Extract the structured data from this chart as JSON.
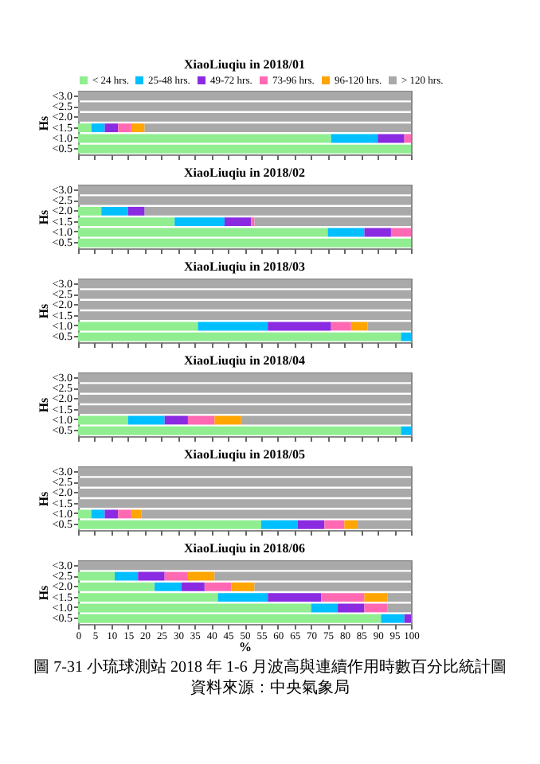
{
  "chart_data": [
    {
      "type": "bar",
      "orientation": "horizontal",
      "stacked": true,
      "title": "XiaoLiuqiu in 2018/01",
      "ylabel": "Hs",
      "categories": [
        "<3.0",
        "<2.5",
        "<2.0",
        "<1.5",
        "<1.0",
        "<0.5"
      ],
      "xlim": [
        0,
        100
      ],
      "xticks": [
        0,
        5,
        10,
        15,
        20,
        25,
        30,
        35,
        40,
        45,
        50,
        55,
        60,
        65,
        70,
        75,
        80,
        85,
        90,
        95,
        100
      ],
      "tick_labels": "y",
      "legend": "top",
      "series": [
        {
          "name": "< 24 hrs.",
          "color": "#90ee90",
          "values": [
            0,
            0,
            0,
            4,
            76,
            100
          ]
        },
        {
          "name": "25-48 hrs.",
          "color": "#00bfff",
          "values": [
            0,
            0,
            0,
            4,
            14,
            0
          ]
        },
        {
          "name": "49-72 hrs.",
          "color": "#8a2be2",
          "values": [
            0,
            0,
            0,
            4,
            8,
            0
          ]
        },
        {
          "name": "73-96 hrs.",
          "color": "#ff69b4",
          "values": [
            0,
            0,
            0,
            4,
            2,
            0
          ]
        },
        {
          "name": "96-120 hrs.",
          "color": "#ffa500",
          "values": [
            0,
            0,
            0,
            4,
            0,
            0
          ]
        },
        {
          "name": "> 120 hrs.",
          "color": "#a9a9a9",
          "values": [
            100,
            100,
            100,
            80,
            0,
            0
          ]
        }
      ]
    },
    {
      "type": "bar",
      "orientation": "horizontal",
      "stacked": true,
      "title": "XiaoLiuqiu in 2018/02",
      "ylabel": "Hs",
      "categories": [
        "<3.0",
        "<2.5",
        "<2.0",
        "<1.5",
        "<1.0",
        "<0.5"
      ],
      "xlim": [
        0,
        100
      ],
      "xticks": [
        0,
        5,
        10,
        15,
        20,
        25,
        30,
        35,
        40,
        45,
        50,
        55,
        60,
        65,
        70,
        75,
        80,
        85,
        90,
        95,
        100
      ],
      "tick_labels": "y",
      "series": [
        {
          "color": "#90ee90",
          "values": [
            0,
            0,
            7,
            29,
            75,
            100
          ]
        },
        {
          "color": "#00bfff",
          "values": [
            0,
            0,
            8,
            15,
            11,
            0
          ]
        },
        {
          "color": "#8a2be2",
          "values": [
            0,
            0,
            5,
            8,
            8,
            0
          ]
        },
        {
          "color": "#ff69b4",
          "values": [
            0,
            0,
            0,
            1,
            6,
            0
          ]
        },
        {
          "color": "#ffa500",
          "values": [
            0,
            0,
            0,
            0,
            0,
            0
          ]
        },
        {
          "color": "#a9a9a9",
          "values": [
            100,
            100,
            80,
            47,
            0,
            0
          ]
        }
      ]
    },
    {
      "type": "bar",
      "orientation": "horizontal",
      "stacked": true,
      "title": "XiaoLiuqiu in 2018/03",
      "ylabel": "Hs",
      "categories": [
        "<3.0",
        "<2.5",
        "<2.0",
        "<1.5",
        "<1.0",
        "<0.5"
      ],
      "xlim": [
        0,
        100
      ],
      "xticks": [
        0,
        5,
        10,
        15,
        20,
        25,
        30,
        35,
        40,
        45,
        50,
        55,
        60,
        65,
        70,
        75,
        80,
        85,
        90,
        95,
        100
      ],
      "tick_labels": "y",
      "series": [
        {
          "color": "#90ee90",
          "values": [
            0,
            0,
            0,
            0,
            36,
            97
          ]
        },
        {
          "color": "#00bfff",
          "values": [
            0,
            0,
            0,
            0,
            21,
            3
          ]
        },
        {
          "color": "#8a2be2",
          "values": [
            0,
            0,
            0,
            0,
            19,
            0
          ]
        },
        {
          "color": "#ff69b4",
          "values": [
            0,
            0,
            0,
            0,
            6,
            0
          ]
        },
        {
          "color": "#ffa500",
          "values": [
            0,
            0,
            0,
            0,
            5,
            0
          ]
        },
        {
          "color": "#a9a9a9",
          "values": [
            100,
            100,
            100,
            100,
            13,
            0
          ]
        }
      ]
    },
    {
      "type": "bar",
      "orientation": "horizontal",
      "stacked": true,
      "title": "XiaoLiuqiu in 2018/04",
      "ylabel": "Hs",
      "categories": [
        "<3.0",
        "<2.5",
        "<2.0",
        "<1.5",
        "<1.0",
        "<0.5"
      ],
      "xlim": [
        0,
        100
      ],
      "xticks": [
        0,
        5,
        10,
        15,
        20,
        25,
        30,
        35,
        40,
        45,
        50,
        55,
        60,
        65,
        70,
        75,
        80,
        85,
        90,
        95,
        100
      ],
      "tick_labels": "y",
      "series": [
        {
          "color": "#90ee90",
          "values": [
            0,
            0,
            0,
            0,
            15,
            97
          ]
        },
        {
          "color": "#00bfff",
          "values": [
            0,
            0,
            0,
            0,
            11,
            3
          ]
        },
        {
          "color": "#8a2be2",
          "values": [
            0,
            0,
            0,
            0,
            7,
            0
          ]
        },
        {
          "color": "#ff69b4",
          "values": [
            0,
            0,
            0,
            0,
            8,
            0
          ]
        },
        {
          "color": "#ffa500",
          "values": [
            0,
            0,
            0,
            0,
            8,
            0
          ]
        },
        {
          "color": "#a9a9a9",
          "values": [
            100,
            100,
            100,
            100,
            51,
            0
          ]
        }
      ]
    },
    {
      "type": "bar",
      "orientation": "horizontal",
      "stacked": true,
      "title": "XiaoLiuqiu in 2018/05",
      "ylabel": "Hs",
      "categories": [
        "<3.0",
        "<2.5",
        "<2.0",
        "<1.5",
        "<1.0",
        "<0.5"
      ],
      "xlim": [
        0,
        100
      ],
      "xticks": [
        0,
        5,
        10,
        15,
        20,
        25,
        30,
        35,
        40,
        45,
        50,
        55,
        60,
        65,
        70,
        75,
        80,
        85,
        90,
        95,
        100
      ],
      "tick_labels": "y",
      "series": [
        {
          "color": "#90ee90",
          "values": [
            0,
            0,
            0,
            0,
            4,
            55
          ]
        },
        {
          "color": "#00bfff",
          "values": [
            0,
            0,
            0,
            0,
            4,
            11
          ]
        },
        {
          "color": "#8a2be2",
          "values": [
            0,
            0,
            0,
            0,
            4,
            8
          ]
        },
        {
          "color": "#ff69b4",
          "values": [
            0,
            0,
            0,
            0,
            4,
            6
          ]
        },
        {
          "color": "#ffa500",
          "values": [
            0,
            0,
            0,
            0,
            3,
            4
          ]
        },
        {
          "color": "#a9a9a9",
          "values": [
            100,
            100,
            100,
            100,
            81,
            16
          ]
        }
      ]
    },
    {
      "type": "bar",
      "orientation": "horizontal",
      "stacked": true,
      "title": "XiaoLiuqiu in 2018/06",
      "ylabel": "Hs",
      "xlabel": "%",
      "categories": [
        "<3.0",
        "<2.5",
        "<2.0",
        "<1.5",
        "<1.0",
        "<0.5"
      ],
      "xlim": [
        0,
        100
      ],
      "xticks": [
        0,
        5,
        10,
        15,
        20,
        25,
        30,
        35,
        40,
        45,
        50,
        55,
        60,
        65,
        70,
        75,
        80,
        85,
        90,
        95,
        100
      ],
      "annotations": [
        "圖 7-31 小琉球測站 2018 年 1-6 月波高與連續作用時數百分比統計圖",
        "資料來源：中央氣象局"
      ],
      "series": [
        {
          "color": "#90ee90",
          "values": [
            0,
            11,
            23,
            42,
            70,
            91
          ]
        },
        {
          "color": "#00bfff",
          "values": [
            0,
            7,
            8,
            15,
            8,
            7
          ]
        },
        {
          "color": "#8a2be2",
          "values": [
            0,
            8,
            7,
            16,
            8,
            2
          ]
        },
        {
          "color": "#ff69b4",
          "values": [
            0,
            7,
            8,
            13,
            7,
            0
          ]
        },
        {
          "color": "#ffa500",
          "values": [
            0,
            8,
            7,
            7,
            0,
            0
          ]
        },
        {
          "color": "#a9a9a9",
          "values": [
            100,
            59,
            47,
            7,
            7,
            0
          ]
        }
      ]
    }
  ]
}
